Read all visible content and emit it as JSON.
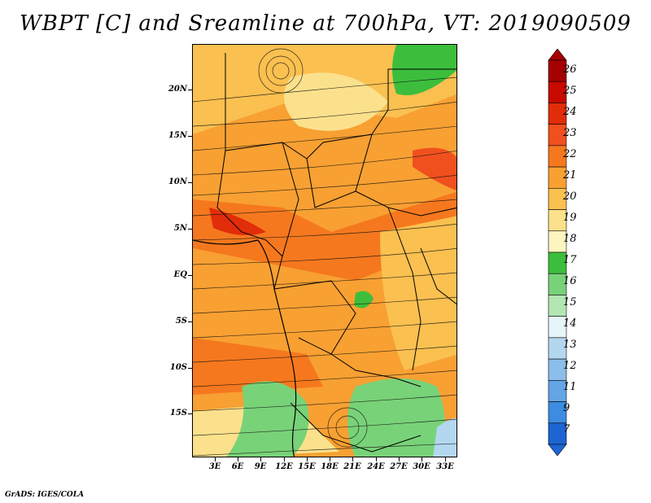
{
  "title": "WBPT [C] and Sreamline at 700hPa, VT: 2019090509",
  "footer": "GrADS: IGES/COLA",
  "map": {
    "lat_labels": [
      "20N",
      "15N",
      "10N",
      "5N",
      "EQ",
      "5S",
      "10S",
      "15S"
    ],
    "lon_labels": [
      "3E",
      "6E",
      "9E",
      "12E",
      "15E",
      "18E",
      "21E",
      "24E",
      "27E",
      "30E",
      "33E"
    ]
  },
  "colorbar": {
    "labels": [
      "26",
      "25",
      "24",
      "23",
      "22",
      "21",
      "20",
      "19",
      "18",
      "17",
      "16",
      "15",
      "14",
      "13",
      "12",
      "11",
      "9",
      "7"
    ],
    "colors": [
      "#a50000",
      "#c80a00",
      "#e12d0a",
      "#f0501e",
      "#f5781e",
      "#f8a032",
      "#fac050",
      "#fce18c",
      "#fdf5c0",
      "#3cbe3c",
      "#78d278",
      "#b4e6b4",
      "#e6f5fa",
      "#b4d7f0",
      "#8cbeeb",
      "#64a5e6",
      "#3c8ce1",
      "#1e64d2"
    ]
  }
}
